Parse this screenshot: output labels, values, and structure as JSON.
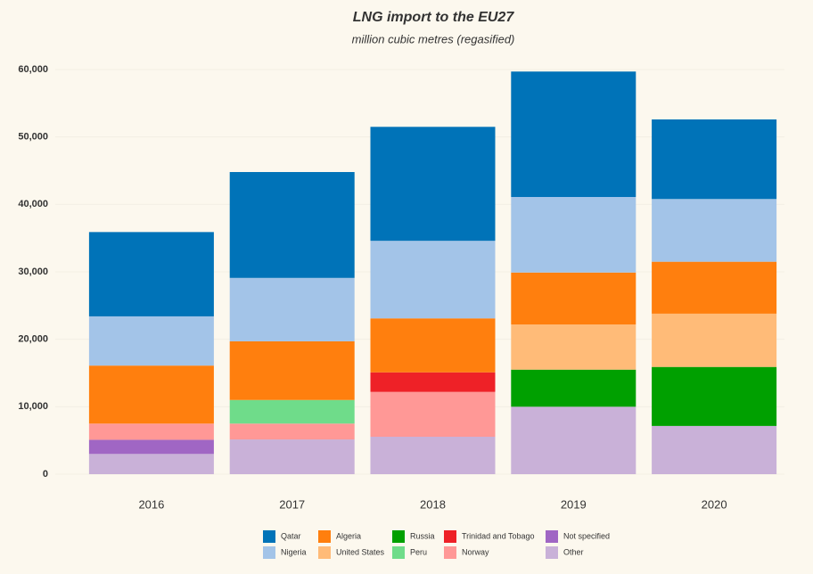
{
  "chart_data": {
    "type": "stacked_bar",
    "title": "LNG import to the EU27",
    "subtitle": "million cubic metres (regasified)",
    "categories": [
      "2016",
      "2017",
      "2018",
      "2019",
      "2020"
    ],
    "series": [
      {
        "name": "Qatar",
        "color": "#0073b8",
        "values": [
          12500,
          15700,
          16900,
          18600,
          11800
        ]
      },
      {
        "name": "Nigeria",
        "color": "#a3c4e8",
        "values": [
          7300,
          9400,
          11500,
          11200,
          9300
        ]
      },
      {
        "name": "Algeria",
        "color": "#ff7f0e",
        "values": [
          8600,
          8700,
          8000,
          7700,
          7700
        ]
      },
      {
        "name": "United States",
        "color": "#ffbb78",
        "values": [
          0,
          0,
          0,
          6700,
          7900
        ]
      },
      {
        "name": "Russia",
        "color": "#00a000",
        "values": [
          0,
          0,
          0,
          5500,
          8750
        ]
      },
      {
        "name": "Peru",
        "color": "#6fdc8a",
        "values": [
          0,
          3500,
          0,
          0,
          0
        ]
      },
      {
        "name": "Trinidad and Tobago",
        "color": "#ee2127",
        "values": [
          0,
          0,
          2900,
          0,
          0
        ]
      },
      {
        "name": "Norway",
        "color": "#ff9896",
        "values": [
          2400,
          2350,
          6650,
          0,
          0
        ]
      },
      {
        "name": "Not specified",
        "color": "#a066c4",
        "values": [
          2100,
          0,
          0,
          0,
          0
        ]
      },
      {
        "name": "Other",
        "color": "#c9b1d8",
        "values": [
          3000,
          5150,
          5550,
          10000,
          7150
        ]
      }
    ],
    "ylim": [
      0,
      60000
    ],
    "yticks": [
      0,
      {
        "value": 10000,
        "label": "10,000"
      },
      {
        "value": 20000,
        "label": "20,000"
      },
      {
        "value": 30000,
        "label": "30,000"
      },
      {
        "value": 40000,
        "label": "40,000"
      },
      {
        "value": 50000,
        "label": "50,000"
      },
      {
        "value": 60000,
        "label": "60,000"
      }
    ],
    "grid": true
  }
}
